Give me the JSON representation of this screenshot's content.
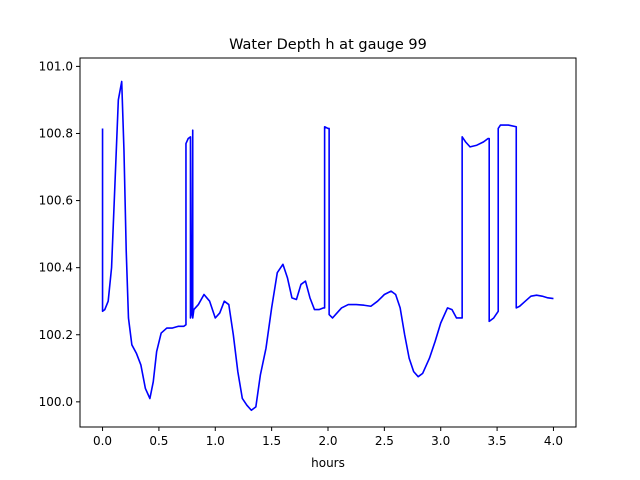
{
  "chart_data": {
    "type": "line",
    "title": "Water Depth h at gauge 99",
    "xlabel": "hours",
    "ylabel": "",
    "xlim": [
      -0.2,
      4.2
    ],
    "ylim": [
      99.925,
      101.025
    ],
    "xticks": [
      0.0,
      0.5,
      1.0,
      1.5,
      2.0,
      2.5,
      3.0,
      3.5,
      4.0
    ],
    "xtick_labels": [
      "0.0",
      "0.5",
      "1.0",
      "1.5",
      "2.0",
      "2.5",
      "3.0",
      "3.5",
      "4.0"
    ],
    "yticks": [
      100.0,
      100.2,
      100.4,
      100.6,
      100.8,
      101.0
    ],
    "ytick_labels": [
      "100.0",
      "100.2",
      "100.4",
      "100.6",
      "100.8",
      "101.0"
    ],
    "grid": false,
    "series": [
      {
        "color": "#0000ff",
        "x": [
          0.0,
          0.0,
          0.02,
          0.05,
          0.08,
          0.11,
          0.14,
          0.17,
          0.19,
          0.21,
          0.23,
          0.26,
          0.3,
          0.34,
          0.38,
          0.42,
          0.45,
          0.48,
          0.52,
          0.57,
          0.62,
          0.67,
          0.72,
          0.74,
          0.74,
          0.76,
          0.78,
          0.78,
          0.79,
          0.8,
          0.8,
          0.81,
          0.85,
          0.9,
          0.95,
          1.0,
          1.04,
          1.08,
          1.12,
          1.16,
          1.2,
          1.24,
          1.28,
          1.32,
          1.36,
          1.4,
          1.45,
          1.5,
          1.55,
          1.6,
          1.64,
          1.68,
          1.72,
          1.76,
          1.8,
          1.84,
          1.88,
          1.92,
          1.96,
          1.97,
          1.97,
          2.0,
          2.01,
          2.01,
          2.04,
          2.08,
          2.12,
          2.18,
          2.25,
          2.32,
          2.38,
          2.44,
          2.5,
          2.56,
          2.6,
          2.64,
          2.68,
          2.72,
          2.76,
          2.8,
          2.84,
          2.9,
          2.95,
          3.0,
          3.06,
          3.1,
          3.14,
          3.18,
          3.19,
          3.19,
          3.22,
          3.26,
          3.32,
          3.38,
          3.42,
          3.43,
          3.43,
          3.47,
          3.51,
          3.51,
          3.53,
          3.6,
          3.67,
          3.67,
          3.7,
          3.75,
          3.8,
          3.85,
          3.9,
          3.95,
          4.0
        ],
        "y": [
          100.815,
          100.27,
          100.275,
          100.3,
          100.4,
          100.65,
          100.9,
          100.955,
          100.75,
          100.45,
          100.25,
          100.17,
          100.145,
          100.11,
          100.04,
          100.01,
          100.06,
          100.15,
          100.205,
          100.22,
          100.22,
          100.225,
          100.225,
          100.23,
          100.77,
          100.785,
          100.79,
          100.25,
          100.265,
          100.81,
          100.25,
          100.275,
          100.29,
          100.32,
          100.3,
          100.25,
          100.265,
          100.3,
          100.29,
          100.2,
          100.09,
          100.01,
          99.99,
          99.975,
          99.985,
          100.08,
          100.16,
          100.28,
          100.385,
          100.41,
          100.37,
          100.31,
          100.305,
          100.35,
          100.36,
          100.31,
          100.275,
          100.275,
          100.28,
          100.28,
          100.82,
          100.815,
          100.815,
          100.26,
          100.25,
          100.265,
          100.28,
          100.29,
          100.29,
          100.288,
          100.285,
          100.3,
          100.32,
          100.33,
          100.32,
          100.28,
          100.2,
          100.13,
          100.09,
          100.075,
          100.085,
          100.13,
          100.18,
          100.235,
          100.28,
          100.275,
          100.25,
          100.25,
          100.25,
          100.79,
          100.775,
          100.76,
          100.765,
          100.775,
          100.785,
          100.785,
          100.24,
          100.25,
          100.27,
          100.815,
          100.825,
          100.825,
          100.82,
          100.28,
          100.285,
          100.3,
          100.315,
          100.318,
          100.315,
          100.31,
          100.308
        ]
      }
    ]
  }
}
